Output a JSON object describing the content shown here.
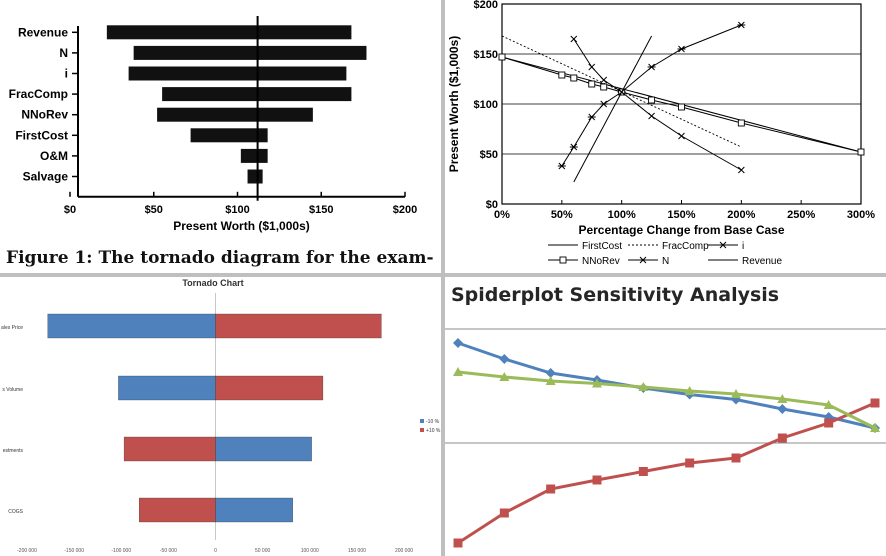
{
  "caption": "Figure 1: The tornado diagram for the exam-",
  "chart_data": [
    {
      "type": "bar",
      "subtype": "tornado",
      "title": "",
      "xlabel": "Present Worth ($1,000s)",
      "ylabel": "",
      "xlim": [
        0,
        200
      ],
      "x_ticks": [
        "$0",
        "$50",
        "$100",
        "$150",
        "$200"
      ],
      "base_value": 112,
      "categories": [
        "Revenue",
        "N",
        "i",
        "FracComp",
        "NNoRev",
        "FirstCost",
        "O&M",
        "Salvage"
      ],
      "low": [
        22,
        38,
        35,
        55,
        52,
        72,
        102,
        106
      ],
      "high": [
        168,
        177,
        165,
        168,
        145,
        118,
        118,
        115
      ]
    },
    {
      "type": "line",
      "subtype": "spiderplot",
      "title": "",
      "xlabel": "Percentage Change from Base Case",
      "ylabel": "Present Worth ($1,000s)",
      "xlim": [
        0,
        300
      ],
      "ylim": [
        0,
        200
      ],
      "x_ticks": [
        "0%",
        "50%",
        "100%",
        "150%",
        "200%",
        "250%",
        "300%"
      ],
      "y_ticks": [
        "$0",
        "$50",
        "$100",
        "$150",
        "$200"
      ],
      "grid": "horizontal",
      "legend_position": "bottom",
      "series": [
        {
          "name": "FirstCost",
          "style": "solid",
          "x": [
            0,
            300
          ],
          "y": [
            147,
            52
          ]
        },
        {
          "name": "FracComp",
          "style": "dotted",
          "x": [
            0,
            200
          ],
          "y": [
            168,
            57
          ]
        },
        {
          "name": "i",
          "style": "star",
          "x": [
            50,
            60,
            75,
            85,
            100,
            125,
            150,
            200
          ],
          "y": [
            38,
            57,
            87,
            100,
            112,
            137,
            155,
            179
          ]
        },
        {
          "name": "NNoRev",
          "style": "square",
          "x": [
            0,
            50,
            60,
            75,
            85,
            100,
            125,
            150,
            200,
            300
          ],
          "y": [
            147,
            129,
            126,
            120,
            117,
            112,
            104,
            97,
            81,
            52
          ]
        },
        {
          "name": "N",
          "style": "x",
          "x": [
            60,
            75,
            85,
            100,
            125,
            150,
            200
          ],
          "y": [
            165,
            137,
            124,
            112,
            88,
            68,
            34
          ]
        },
        {
          "name": "Revenue",
          "style": "solid",
          "x": [
            60,
            125
          ],
          "y": [
            22,
            168
          ]
        }
      ]
    },
    {
      "type": "bar",
      "subtype": "tornado",
      "title": "Tornado Chart",
      "xlim": [
        -200000,
        200000
      ],
      "x_ticks": [
        "-200 000",
        "-150 000",
        "-100 000",
        "-50 000",
        "0",
        "50 000",
        "100 000",
        "150 000",
        "200 000"
      ],
      "categories": [
        "ales Price",
        "s Volume",
        "estments",
        "COGS"
      ],
      "legend_position": "right",
      "series": [
        {
          "name": "-10 %",
          "color": "#4f81bd",
          "values": [
            -178000,
            -103000,
            102000,
            82000
          ]
        },
        {
          "name": "+10 %",
          "color": "#c0504d",
          "values": [
            176000,
            114000,
            -97000,
            -81000
          ]
        }
      ]
    },
    {
      "type": "line",
      "subtype": "spiderplot",
      "title": "Spiderplot Sensitivity Analysis",
      "x": [
        1,
        2,
        3,
        4,
        5,
        6,
        7,
        8,
        9,
        10
      ],
      "series": [
        {
          "color": "#4f81bd",
          "marker": "diamond",
          "y": [
            170,
            138,
            110,
            96,
            80,
            67,
            57,
            38,
            22,
            0
          ]
        },
        {
          "color": "#c0504d",
          "marker": "square",
          "y": [
            -230,
            -170,
            -122,
            -104,
            -87,
            -70,
            -60,
            -20,
            10,
            50
          ]
        },
        {
          "color": "#9bbb59",
          "marker": "triangle",
          "y": [
            112,
            102,
            94,
            89,
            82,
            74,
            68,
            58,
            46,
            0
          ]
        }
      ]
    }
  ]
}
